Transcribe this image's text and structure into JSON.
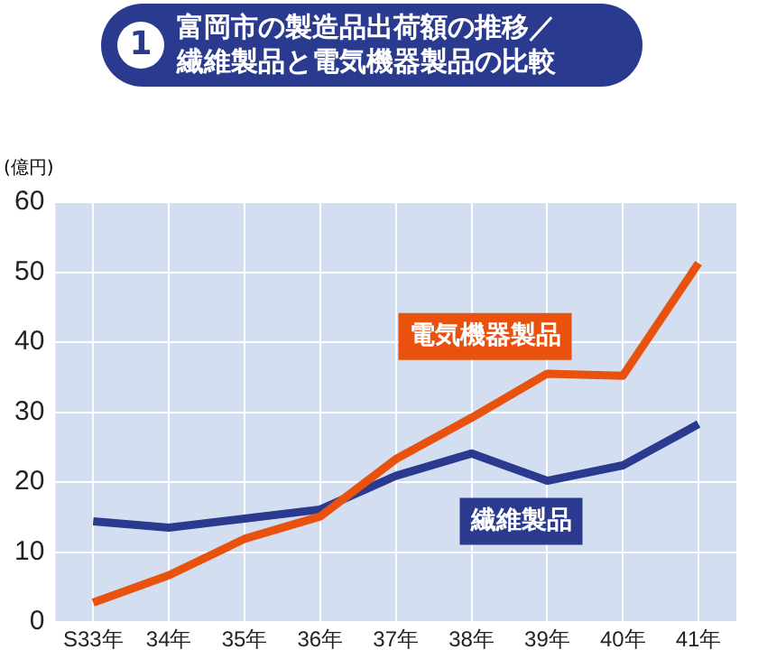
{
  "chart_data": {
    "type": "line",
    "title": "富岡市の製造品出荷額の推移／繊維製品と電気機器製品の比較",
    "annotations": [
      "1"
    ],
    "ylabel": "(億円)",
    "categories": [
      "S33年",
      "34年",
      "35年",
      "36年",
      "37年",
      "38年",
      "39年",
      "40年",
      "41年"
    ],
    "series": [
      {
        "name": "電気機器製品",
        "color": "#e8520e",
        "values": [
          2.8,
          6.7,
          11.9,
          15.1,
          23.3,
          29.2,
          35.5,
          35.2,
          51.3
        ]
      },
      {
        "name": "繊維製品",
        "color": "#2a3a8f",
        "values": [
          14.4,
          13.5,
          14.8,
          16.1,
          20.9,
          24.1,
          20.2,
          22.4,
          28.3
        ]
      }
    ],
    "ylim": [
      0,
      60
    ],
    "yticks": [
      0,
      10,
      20,
      30,
      40,
      50,
      60
    ],
    "grid": true,
    "marker": "none",
    "line_style": "solid",
    "legend": false
  }
}
